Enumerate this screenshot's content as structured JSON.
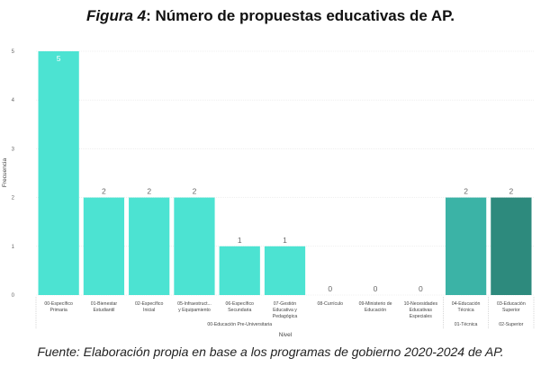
{
  "title": {
    "figure_label": "Figura 4",
    "rest": ": Número de propuestas educativas de AP."
  },
  "footer": "Fuente: Elaboración propia en base a los programas de gobierno 2020-2024 de AP.",
  "colors": {
    "base": "#4ce3d2",
    "tecnica": "#3bb3a6",
    "superior": "#2d8a7d",
    "grid": "#e6e6e6",
    "sep": "#bdbdbd"
  },
  "chart_data": {
    "type": "bar",
    "xlabel": "Nivel",
    "ylabel": "Frecuencia",
    "ylim": [
      0,
      5
    ],
    "yticks": [
      "0",
      "1",
      "2",
      "3",
      "4",
      "5"
    ],
    "grid": true,
    "categories": [
      {
        "lines": [
          "00-Específico",
          "Primaria"
        ],
        "value": 5,
        "label": "5",
        "color": "base"
      },
      {
        "lines": [
          "01-Bienestar",
          "Estudiantil"
        ],
        "value": 2,
        "label": "2",
        "color": "base"
      },
      {
        "lines": [
          "02-Específico",
          "Inicial"
        ],
        "value": 2,
        "label": "2",
        "color": "base"
      },
      {
        "lines": [
          "05-Infraestruct...",
          "y Equipamiento"
        ],
        "value": 2,
        "label": "2",
        "color": "base"
      },
      {
        "lines": [
          "06-Específico",
          "Secundaria"
        ],
        "value": 1,
        "label": "1",
        "color": "base"
      },
      {
        "lines": [
          "07-Gestión",
          "Educativa y",
          "Pedagógica"
        ],
        "value": 1,
        "label": "1",
        "color": "base"
      },
      {
        "lines": [
          "08-Currículo"
        ],
        "value": 0,
        "label": "0",
        "color": "base"
      },
      {
        "lines": [
          "09-Ministerio de",
          "Educación"
        ],
        "value": 0,
        "label": "0",
        "color": "base"
      },
      {
        "lines": [
          "10-Necesidades",
          "Educativas",
          "Especiales"
        ],
        "value": 0,
        "label": "0",
        "color": "base"
      },
      {
        "lines": [
          "04-Educación",
          "Técnica"
        ],
        "value": 2,
        "label": "2",
        "color": "tecnica"
      },
      {
        "lines": [
          "03-Educación",
          "Superior"
        ],
        "value": 2,
        "label": "2",
        "color": "superior"
      }
    ],
    "groups": [
      {
        "label": "00-Educación Pre-Universitaria",
        "start": 0,
        "end": 8
      },
      {
        "label": "01-Técnica",
        "start": 9,
        "end": 9
      },
      {
        "label": "02-Superior",
        "start": 10,
        "end": 10
      }
    ]
  }
}
